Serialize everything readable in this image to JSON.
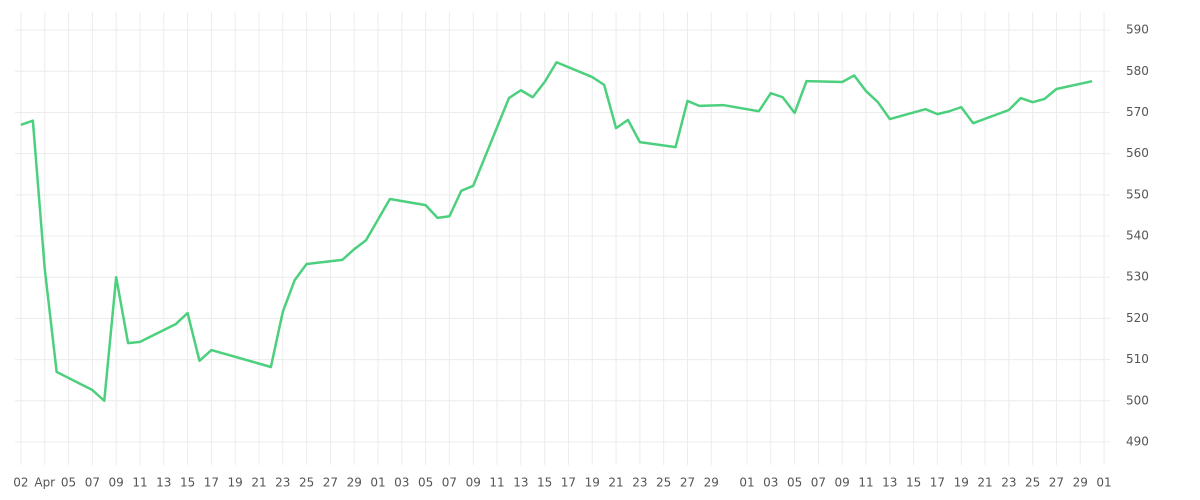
{
  "chart_data": {
    "type": "line",
    "x": [
      0,
      1,
      2,
      3,
      6,
      7,
      8,
      9,
      10,
      13,
      14,
      15,
      16,
      21,
      22,
      23,
      24,
      27,
      28,
      29,
      31,
      34,
      35,
      36,
      37,
      38,
      41,
      42,
      43,
      44,
      45,
      48,
      49,
      50,
      51,
      52,
      55,
      56,
      57,
      59,
      62,
      63,
      64,
      65,
      66,
      69,
      70,
      71,
      72,
      73,
      76,
      77,
      78,
      79,
      80,
      83,
      84,
      85,
      86,
      87,
      90
    ],
    "series": [
      {
        "color": "#4cd07d",
        "values": [
          567,
          568,
          532,
          507,
          502.6,
          500,
          530,
          514,
          514.3,
          518.6,
          521.3,
          509.7,
          512.3,
          508.2,
          521.6,
          529.3,
          533.2,
          534.2,
          536.8,
          539,
          549,
          547.5,
          544.4,
          544.8,
          551,
          552.2,
          573.5,
          575.4,
          573.7,
          577.4,
          582.2,
          578.6,
          576.7,
          566.2,
          568.2,
          562.8,
          561.6,
          572.8,
          571.6,
          571.8,
          570.3,
          574.7,
          573.7,
          569.9,
          577.6,
          577.4,
          579,
          575.2,
          572.5,
          568.4,
          570.8,
          569.6,
          570.3,
          571.3,
          567.4,
          570.6,
          573.5,
          572.5,
          573.3,
          575.7,
          577.6
        ]
      }
    ],
    "xlim": [
      -0.5,
      91.5
    ],
    "xticks": [
      {
        "value": 0,
        "label": "02"
      },
      {
        "value": 2,
        "label": "Apr"
      },
      {
        "value": 4,
        "label": "05"
      },
      {
        "value": 6,
        "label": "07"
      },
      {
        "value": 8,
        "label": "09"
      },
      {
        "value": 10,
        "label": "11"
      },
      {
        "value": 12,
        "label": "13"
      },
      {
        "value": 14,
        "label": "15"
      },
      {
        "value": 16,
        "label": "17"
      },
      {
        "value": 18,
        "label": "19"
      },
      {
        "value": 20,
        "label": "21"
      },
      {
        "value": 22,
        "label": "23"
      },
      {
        "value": 24,
        "label": "25"
      },
      {
        "value": 26,
        "label": "27"
      },
      {
        "value": 28,
        "label": "29"
      },
      {
        "value": 30,
        "label": "01"
      },
      {
        "value": 32,
        "label": "03"
      },
      {
        "value": 34,
        "label": "05"
      },
      {
        "value": 36,
        "label": "07"
      },
      {
        "value": 38,
        "label": "09"
      },
      {
        "value": 40,
        "label": "11"
      },
      {
        "value": 42,
        "label": "13"
      },
      {
        "value": 44,
        "label": "15"
      },
      {
        "value": 46,
        "label": "17"
      },
      {
        "value": 48,
        "label": "19"
      },
      {
        "value": 50,
        "label": "21"
      },
      {
        "value": 52,
        "label": "23"
      },
      {
        "value": 54,
        "label": "25"
      },
      {
        "value": 56,
        "label": "27"
      },
      {
        "value": 58,
        "label": "29"
      },
      {
        "value": 61,
        "label": "01"
      },
      {
        "value": 63,
        "label": "03"
      },
      {
        "value": 65,
        "label": "05"
      },
      {
        "value": 67,
        "label": "07"
      },
      {
        "value": 69,
        "label": "09"
      },
      {
        "value": 71,
        "label": "11"
      },
      {
        "value": 73,
        "label": "13"
      },
      {
        "value": 75,
        "label": "15"
      },
      {
        "value": 77,
        "label": "17"
      },
      {
        "value": 79,
        "label": "19"
      },
      {
        "value": 81,
        "label": "21"
      },
      {
        "value": 83,
        "label": "23"
      },
      {
        "value": 85,
        "label": "25"
      },
      {
        "value": 87,
        "label": "27"
      },
      {
        "value": 89,
        "label": "29"
      },
      {
        "value": 91,
        "label": "01"
      }
    ],
    "ylim": [
      484.4,
      594.4
    ],
    "yticks": [
      490,
      500,
      510,
      520,
      530,
      540,
      550,
      560,
      570,
      580,
      590
    ],
    "grid": true
  }
}
